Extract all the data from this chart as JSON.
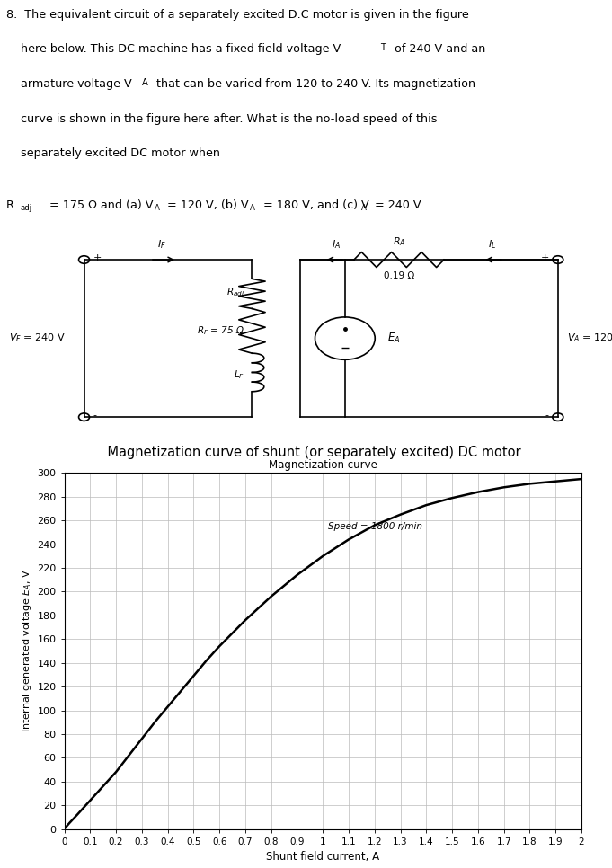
{
  "circuit_caption": "    Magnetization curve of shunt (or separately excited) DC motor",
  "graph_title": "Magnetization curve",
  "graph_xlabel": "Shunt field current, A",
  "graph_ylabel": "Internal generated voltage $E_A$, V",
  "graph_annotation": "Speed = 1800 r/min",
  "curve_x": [
    0,
    0.02,
    0.05,
    0.1,
    0.15,
    0.2,
    0.25,
    0.3,
    0.35,
    0.4,
    0.45,
    0.5,
    0.55,
    0.6,
    0.65,
    0.7,
    0.75,
    0.8,
    0.85,
    0.9,
    0.95,
    1.0,
    1.1,
    1.2,
    1.3,
    1.4,
    1.5,
    1.6,
    1.7,
    1.8,
    1.9,
    2.0
  ],
  "curve_y": [
    0,
    5,
    12,
    24,
    36,
    48,
    62,
    76,
    90,
    103,
    116,
    129,
    142,
    154,
    165,
    176,
    186,
    196,
    205,
    214,
    222,
    230,
    244,
    256,
    265,
    273,
    279,
    284,
    288,
    291,
    293,
    295
  ],
  "bg_color": "#ffffff",
  "text_color": "#000000",
  "curve_color": "#000000",
  "grid_color": "#bbbbbb"
}
